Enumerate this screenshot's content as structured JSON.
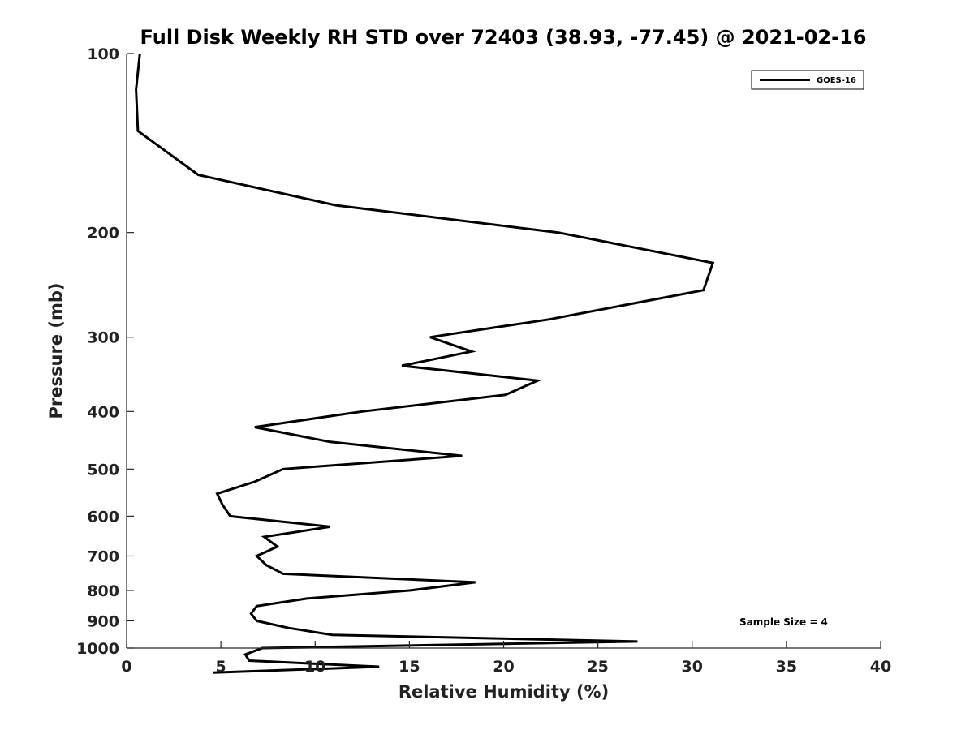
{
  "chart_data": {
    "type": "line",
    "title": "Full Disk Weekly RH STD over 72403 (38.93, -77.45) @ 2021-02-16",
    "xlabel": "Relative Humidity (%)",
    "ylabel": "Pressure (mb)",
    "xlim": [
      0,
      40
    ],
    "ylim": [
      100,
      1000
    ],
    "y_scale": "log",
    "y_reversed": true,
    "x_ticks": [
      0,
      5,
      10,
      15,
      20,
      25,
      30,
      35,
      40
    ],
    "y_ticks": [
      100,
      200,
      300,
      400,
      500,
      600,
      700,
      800,
      900,
      1000
    ],
    "grid": false,
    "legend_position": "top-right",
    "annotation": "Sample Size = 4",
    "series": [
      {
        "name": "GOES-16",
        "color": "#000000",
        "points": [
          [
            0.7,
            100
          ],
          [
            0.5,
            115
          ],
          [
            0.6,
            135
          ],
          [
            3.8,
            160
          ],
          [
            11.1,
            180
          ],
          [
            22.9,
            200
          ],
          [
            31.1,
            225
          ],
          [
            30.6,
            250
          ],
          [
            22.4,
            280
          ],
          [
            16.1,
            300
          ],
          [
            18.3,
            317
          ],
          [
            14.6,
            335
          ],
          [
            21.8,
            355
          ],
          [
            20.1,
            375
          ],
          [
            12.5,
            400
          ],
          [
            6.8,
            425
          ],
          [
            10.8,
            450
          ],
          [
            17.8,
            475
          ],
          [
            8.3,
            500
          ],
          [
            6.8,
            525
          ],
          [
            4.8,
            550
          ],
          [
            5.1,
            575
          ],
          [
            5.5,
            600
          ],
          [
            10.8,
            625
          ],
          [
            7.3,
            650
          ],
          [
            8.0,
            675
          ],
          [
            6.9,
            700
          ],
          [
            7.4,
            725
          ],
          [
            8.3,
            750
          ],
          [
            18.5,
            775
          ],
          [
            15.0,
            800
          ],
          [
            9.6,
            825
          ],
          [
            6.9,
            850
          ],
          [
            6.6,
            875
          ],
          [
            6.9,
            900
          ],
          [
            8.6,
            925
          ],
          [
            10.9,
            950
          ],
          [
            27.1,
            975
          ],
          [
            7.2,
            1000
          ],
          [
            6.3,
            1025
          ],
          [
            6.5,
            1050
          ],
          [
            13.4,
            1075
          ],
          [
            4.6,
            1100
          ]
        ]
      }
    ]
  }
}
